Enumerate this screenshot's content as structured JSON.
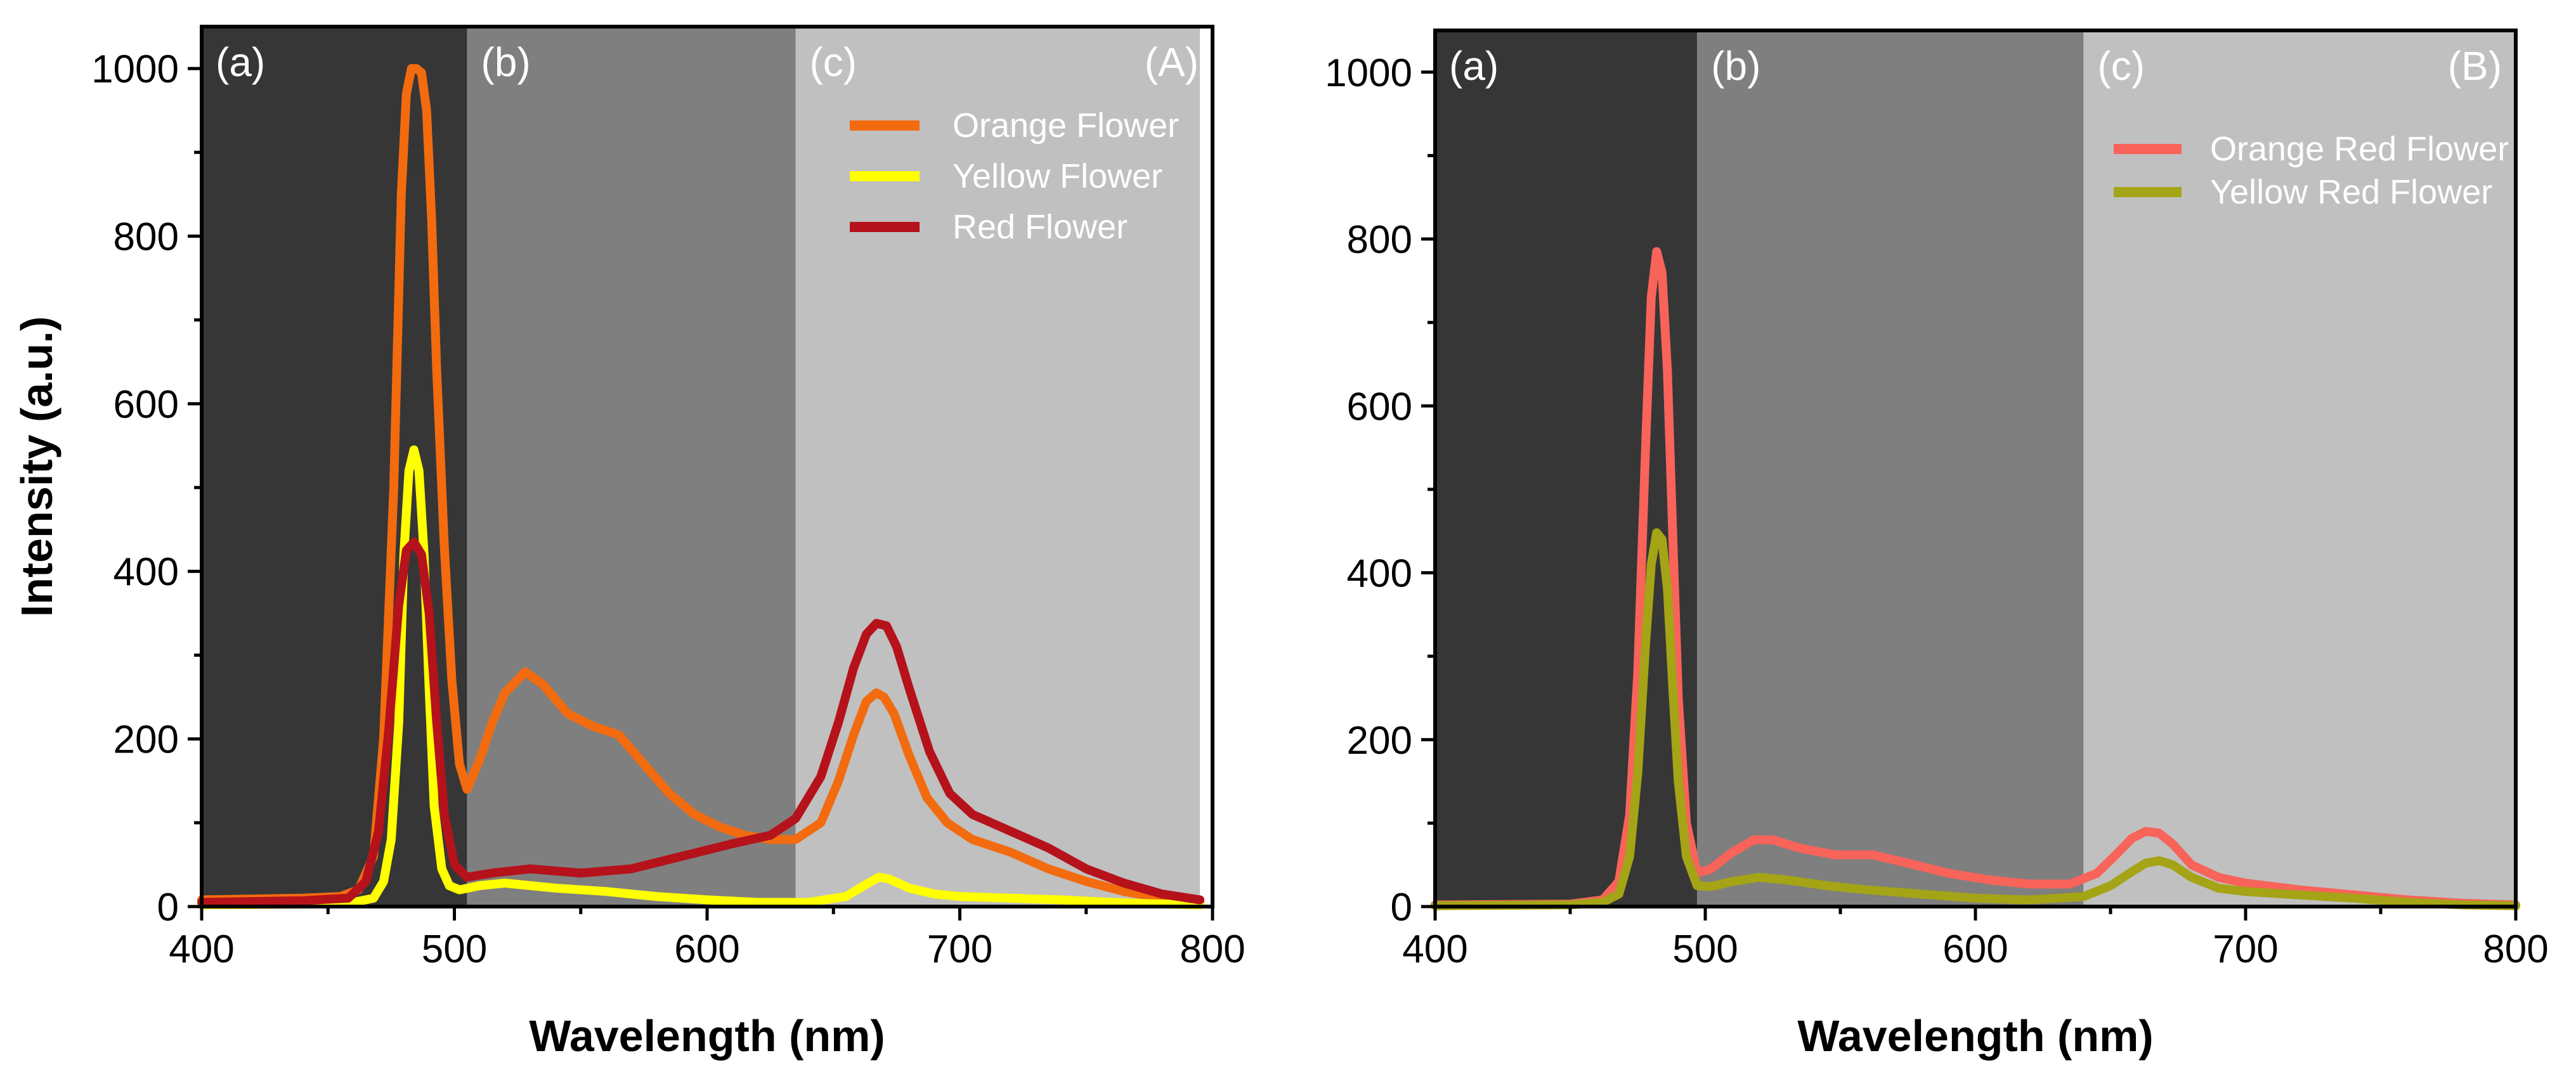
{
  "chart_data": [
    {
      "type": "line",
      "panel_label": "(A)",
      "xlabel": "Wavelength (nm)",
      "ylabel": "Intensity (a.u.)",
      "xlim": [
        400,
        800
      ],
      "ylim": [
        0,
        1050
      ],
      "xticks": [
        400,
        500,
        600,
        700,
        800
      ],
      "yticks": [
        0,
        200,
        400,
        600,
        800,
        1000
      ],
      "regions": [
        {
          "label": "(a)",
          "from": 400,
          "to": 505,
          "color": "#363636"
        },
        {
          "label": "(b)",
          "from": 505,
          "to": 635,
          "color": "#7f7f7f"
        },
        {
          "label": "(c)",
          "from": 635,
          "to": 795,
          "color": "#c0c0c0"
        }
      ],
      "legend_position": "top-right",
      "series": [
        {
          "name": "Orange Flower",
          "color": "#f26b0f",
          "x": [
            400,
            440,
            455,
            462,
            468,
            472,
            476,
            479,
            481,
            483,
            485,
            487,
            489,
            491,
            493,
            496,
            499,
            502,
            505,
            510,
            515,
            520,
            528,
            535,
            545,
            555,
            565,
            575,
            585,
            595,
            605,
            615,
            625,
            635,
            645,
            652,
            658,
            663,
            667,
            670,
            674,
            680,
            687,
            695,
            705,
            720,
            735,
            750,
            765,
            780,
            795
          ],
          "y": [
            8,
            10,
            12,
            20,
            60,
            200,
            500,
            850,
            970,
            1000,
            1000,
            995,
            950,
            820,
            640,
            430,
            270,
            170,
            140,
            175,
            220,
            255,
            280,
            265,
            230,
            215,
            205,
            170,
            135,
            110,
            95,
            85,
            80,
            80,
            100,
            150,
            205,
            245,
            255,
            250,
            230,
            180,
            130,
            100,
            80,
            65,
            45,
            30,
            18,
            10,
            6
          ]
        },
        {
          "name": "Yellow Flower",
          "color": "#ffff00",
          "x": [
            400,
            440,
            460,
            468,
            472,
            475,
            478,
            480,
            482,
            484,
            486,
            488,
            490,
            492,
            495,
            498,
            502,
            510,
            520,
            540,
            560,
            580,
            600,
            620,
            640,
            655,
            662,
            668,
            672,
            680,
            690,
            700,
            720,
            740,
            760,
            780,
            795
          ],
          "y": [
            2,
            3,
            5,
            10,
            30,
            80,
            220,
            420,
            520,
            545,
            520,
            420,
            260,
            120,
            45,
            25,
            20,
            25,
            28,
            22,
            18,
            12,
            8,
            5,
            5,
            12,
            25,
            35,
            33,
            22,
            15,
            12,
            10,
            8,
            5,
            3,
            2
          ]
        },
        {
          "name": "Red Flower",
          "color": "#b5121b",
          "x": [
            400,
            440,
            458,
            465,
            470,
            474,
            478,
            481,
            484,
            487,
            490,
            493,
            496,
            500,
            505,
            515,
            530,
            550,
            570,
            590,
            610,
            625,
            635,
            645,
            652,
            658,
            663,
            667,
            671,
            675,
            680,
            688,
            696,
            705,
            720,
            735,
            750,
            765,
            780,
            795
          ],
          "y": [
            5,
            7,
            10,
            30,
            90,
            210,
            360,
            425,
            435,
            420,
            350,
            220,
            110,
            50,
            35,
            40,
            45,
            40,
            45,
            60,
            75,
            85,
            105,
            155,
            220,
            285,
            325,
            338,
            335,
            310,
            260,
            185,
            135,
            110,
            90,
            70,
            45,
            28,
            15,
            8
          ]
        }
      ]
    },
    {
      "type": "line",
      "panel_label": "(B)",
      "xlabel": "Wavelength (nm)",
      "ylabel": "",
      "xlim": [
        400,
        800
      ],
      "ylim": [
        0,
        1050
      ],
      "xticks": [
        400,
        500,
        600,
        700,
        800
      ],
      "yticks": [
        0,
        200,
        400,
        600,
        800,
        1000
      ],
      "regions": [
        {
          "label": "(a)",
          "from": 400,
          "to": 497,
          "color": "#363636"
        },
        {
          "label": "(b)",
          "from": 497,
          "to": 640,
          "color": "#7f7f7f"
        },
        {
          "label": "(c)",
          "from": 640,
          "to": 800,
          "color": "#c0c0c0"
        }
      ],
      "legend_position": "top-right",
      "series": [
        {
          "name": "Orange Red Flower",
          "color": "#f8635a",
          "x": [
            400,
            450,
            462,
            468,
            472,
            475,
            478,
            480,
            482,
            484,
            486,
            488,
            490,
            493,
            497,
            502,
            510,
            518,
            525,
            535,
            548,
            562,
            575,
            590,
            605,
            620,
            635,
            645,
            652,
            658,
            663,
            668,
            673,
            680,
            690,
            700,
            720,
            740,
            760,
            780,
            800
          ],
          "y": [
            2,
            3,
            8,
            30,
            110,
            280,
            560,
            730,
            785,
            760,
            640,
            440,
            250,
            100,
            40,
            45,
            65,
            80,
            80,
            70,
            62,
            62,
            52,
            40,
            32,
            27,
            27,
            40,
            62,
            82,
            90,
            88,
            75,
            50,
            35,
            28,
            20,
            14,
            8,
            4,
            2
          ]
        },
        {
          "name": "Yellow Red Flower",
          "color": "#a4a416",
          "x": [
            400,
            450,
            462,
            468,
            472,
            475,
            478,
            480,
            482,
            484,
            486,
            488,
            490,
            493,
            497,
            502,
            510,
            520,
            530,
            545,
            560,
            580,
            600,
            620,
            640,
            650,
            658,
            663,
            668,
            673,
            680,
            690,
            700,
            720,
            740,
            760,
            780,
            800
          ],
          "y": [
            1,
            2,
            5,
            15,
            60,
            160,
            320,
            410,
            448,
            440,
            380,
            260,
            150,
            60,
            25,
            24,
            30,
            35,
            32,
            25,
            20,
            15,
            10,
            8,
            12,
            25,
            42,
            52,
            55,
            50,
            35,
            22,
            18,
            14,
            10,
            5,
            2,
            1
          ]
        }
      ]
    }
  ]
}
